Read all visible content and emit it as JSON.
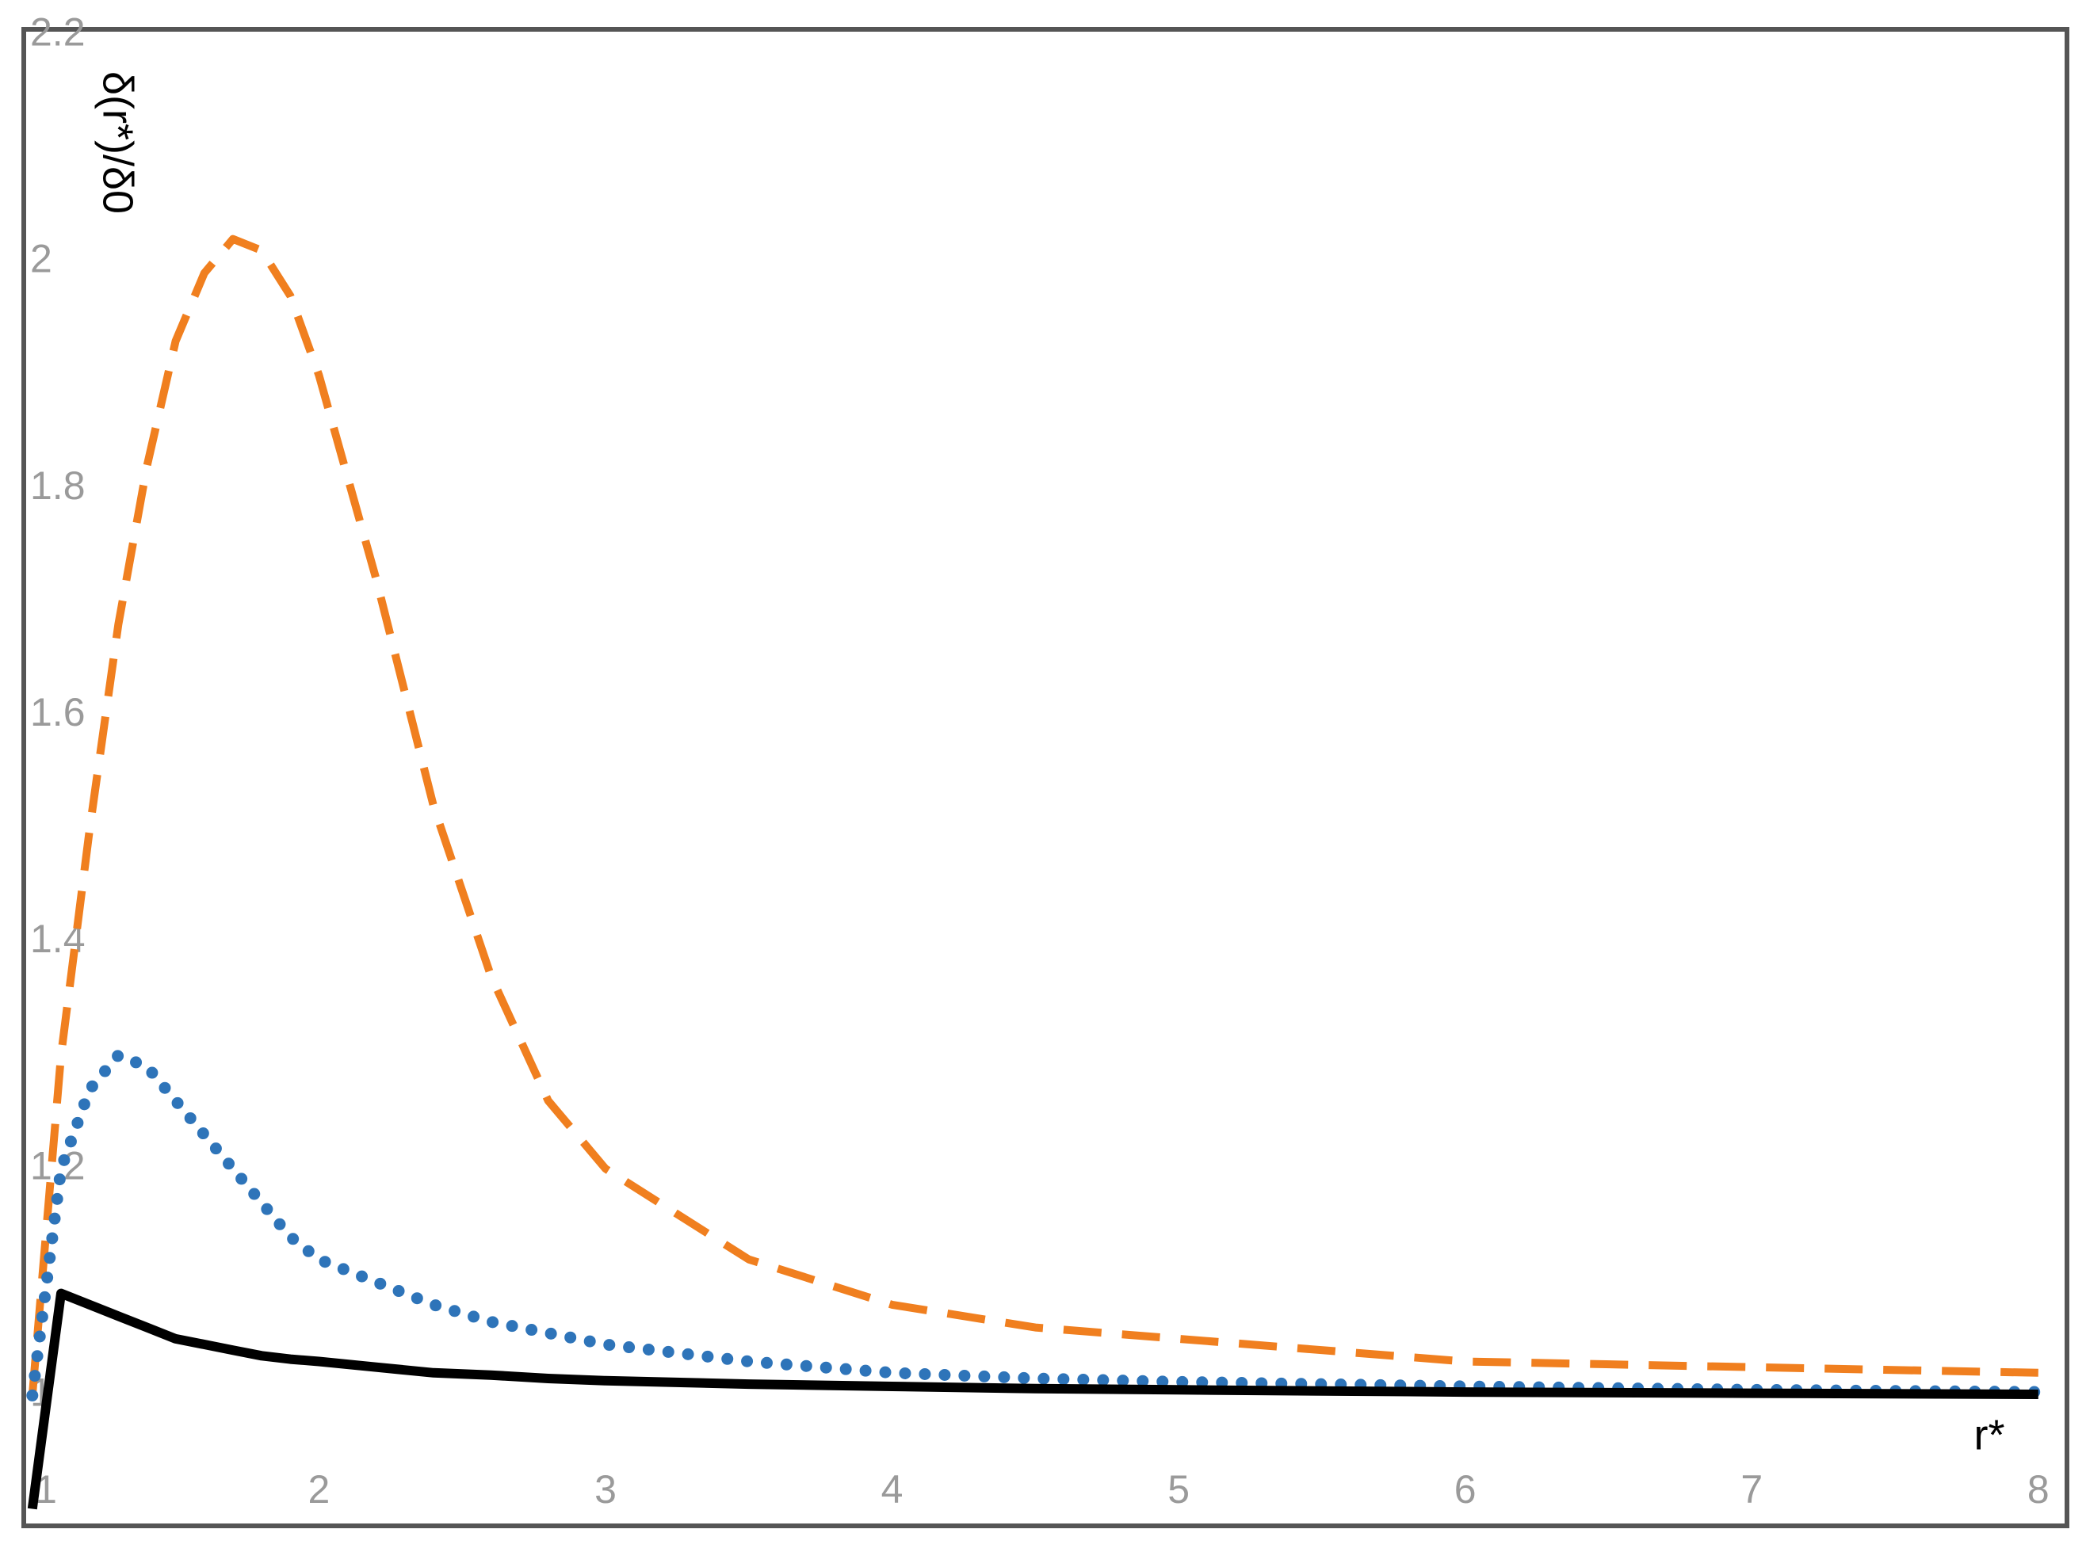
{
  "chart_data": {
    "type": "line",
    "x_label": "r*",
    "y_label": "δ(r*)/δ0",
    "x": [
      1,
      1.1,
      1.2,
      1.3,
      1.4,
      1.5,
      1.6,
      1.7,
      1.8,
      1.9,
      2,
      2.2,
      2.4,
      2.6,
      2.8,
      3,
      3.5,
      4,
      4.5,
      5,
      6,
      7,
      8
    ],
    "series": [
      {
        "color": "#f07f1f",
        "style": "dashed",
        "values": [
          1.0,
          1.3,
          1.5,
          1.68,
          1.82,
          1.93,
          1.99,
          2.02,
          2.01,
          1.97,
          1.9,
          1.72,
          1.52,
          1.37,
          1.26,
          1.2,
          1.12,
          1.08,
          1.06,
          1.05,
          1.03,
          1.025,
          1.02
        ]
      },
      {
        "color": "#2e74b9",
        "style": "dotted",
        "values": [
          1.0,
          1.2,
          1.27,
          1.3,
          1.29,
          1.26,
          1.23,
          1.2,
          1.17,
          1.14,
          1.12,
          1.1,
          1.08,
          1.065,
          1.055,
          1.045,
          1.03,
          1.02,
          1.015,
          1.012,
          1.008,
          1.005,
          1.003
        ]
      },
      {
        "color": "#000000",
        "style": "solid",
        "values": [
          0.9,
          1.09,
          1.08,
          1.07,
          1.06,
          1.05,
          1.045,
          1.04,
          1.035,
          1.032,
          1.03,
          1.025,
          1.02,
          1.018,
          1.015,
          1.013,
          1.01,
          1.008,
          1.006,
          1.005,
          1.003,
          1.002,
          1.001
        ]
      }
    ],
    "xlim": [
      0.97,
      8.1
    ],
    "ylim": [
      0.885,
      2.205
    ],
    "xticks": [
      1,
      2,
      3,
      4,
      5,
      6,
      7,
      8
    ],
    "yticks": [
      1,
      1.2,
      1.4,
      1.6,
      1.8,
      2,
      2.2
    ],
    "grid": false
  }
}
